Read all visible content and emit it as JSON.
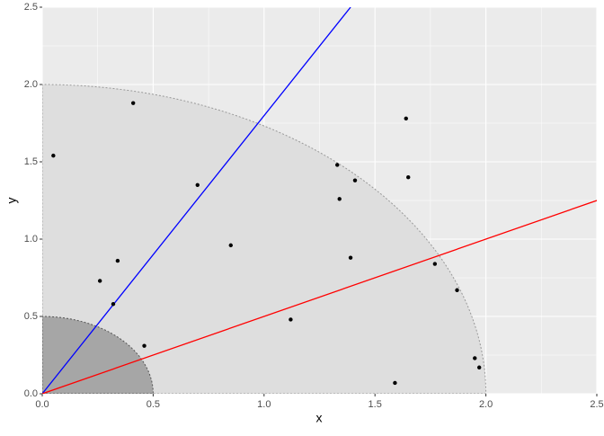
{
  "chart_data": {
    "type": "scatter",
    "xlabel": "x",
    "ylabel": "y",
    "x": [
      0.05,
      0.41,
      0.7,
      0.85,
      0.26,
      0.34,
      0.32,
      0.46,
      1.12,
      1.33,
      1.34,
      1.41,
      1.39,
      1.64,
      1.65,
      1.77,
      1.87,
      1.95,
      1.97,
      1.59
    ],
    "values": [
      1.54,
      1.88,
      1.35,
      0.96,
      0.73,
      0.86,
      0.58,
      0.31,
      0.48,
      1.48,
      1.26,
      1.38,
      0.88,
      1.78,
      1.4,
      0.84,
      0.67,
      0.23,
      0.17,
      0.07
    ],
    "color": "#000000",
    "circles": [
      {
        "radius": 2,
        "fill": "#dedede",
        "stroke": "#999999"
      },
      {
        "radius": 0.5,
        "fill": "#a6a6a6",
        "stroke": "#555555"
      }
    ],
    "lines": [
      {
        "color": "#0000ff",
        "x": [
          0,
          1.39
        ],
        "y": [
          0,
          2.5
        ]
      },
      {
        "color": "#ff0000",
        "x": [
          0,
          2.5
        ],
        "y": [
          0,
          1.25
        ]
      }
    ],
    "xlim": [
      0,
      2.5
    ],
    "ylim": [
      0,
      2.5
    ],
    "xticks": [
      {
        "value": 0,
        "label": "0.0"
      },
      0.5,
      {
        "value": 1,
        "label": "1.0"
      },
      1.5,
      {
        "value": 2,
        "label": "2.0"
      },
      2.5
    ],
    "yticks": [
      {
        "value": 0,
        "label": "0.0"
      },
      0.5,
      {
        "value": 1,
        "label": "1.0"
      },
      1.5,
      {
        "value": 2,
        "label": "2.0"
      },
      2.5
    ],
    "grid": true
  }
}
